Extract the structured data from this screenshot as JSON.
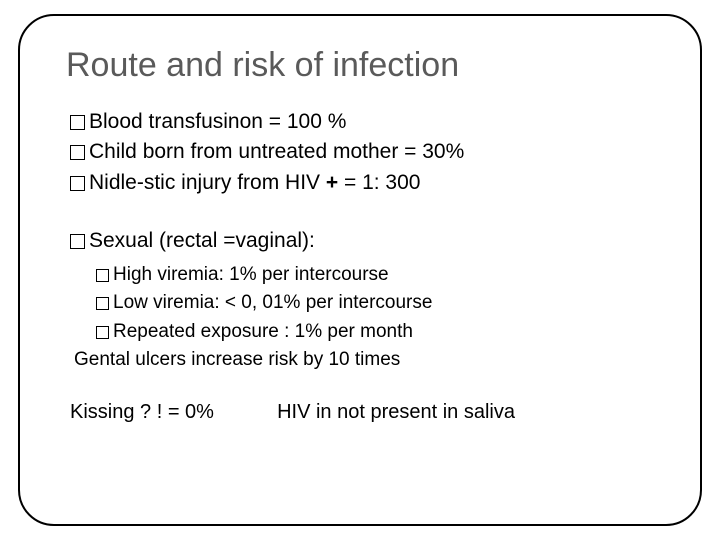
{
  "colors": {
    "frame_border": "#000000",
    "title_color": "#5a5a5a",
    "text_color": "#000000",
    "background": "#ffffff"
  },
  "typography": {
    "title_fontsize": 34,
    "body_fontsize": 21,
    "sub_fontsize": 19,
    "font_family": "Arial"
  },
  "title": "Route and risk of infection",
  "top_items": [
    "Blood transfusinon = 100 %",
    "Child  born from untreated mother = 30%",
    "Nidle-stic injury from HIV + = 1: 300"
  ],
  "section_header": "Sexual (rectal =vaginal):",
  "sub_items": [
    "High viremia: 1% per intercourse",
    "Low viremia: < 0, 01% per intercourse",
    "Repeated exposure : 1% per month"
  ],
  "note": "Gental ulcers  increase risk by 10 times",
  "footer_left": "Kissing ? ! = 0%",
  "footer_right": "HIV in not present in saliva"
}
